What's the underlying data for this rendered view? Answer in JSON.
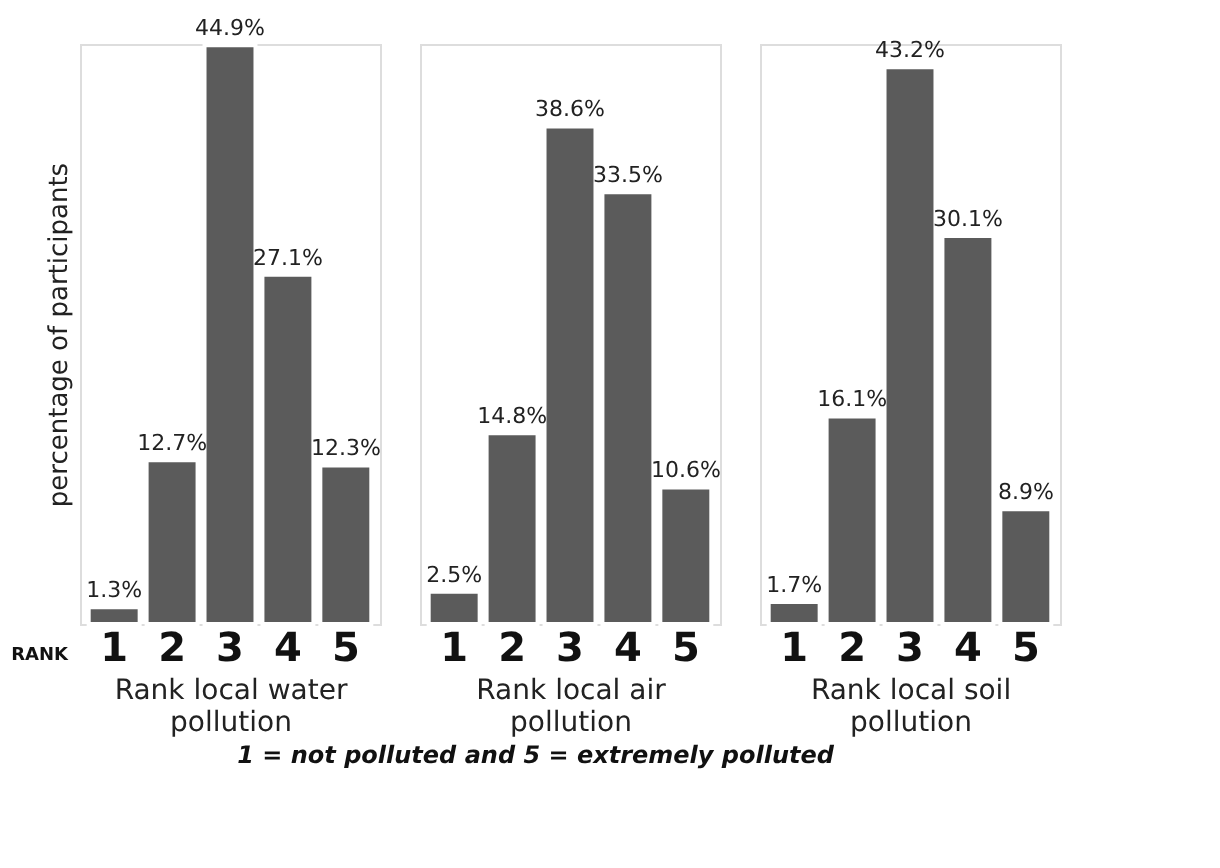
{
  "chart_data": [
    {
      "type": "bar",
      "ylabel": "percentage of participants",
      "xlabel": "Rank local water pollution",
      "categories": [
        "1",
        "2",
        "3",
        "4",
        "5"
      ],
      "values": [
        1.3,
        12.7,
        44.9,
        27.1,
        12.3
      ],
      "value_labels": [
        "1.3%",
        "12.7%",
        "44.9%",
        "27.1%",
        "12.3%"
      ],
      "color": "#5b5b5b",
      "annotations": [
        "RANK"
      ]
    },
    {
      "type": "bar",
      "xlabel": "Rank local air pollution",
      "categories": [
        "1",
        "2",
        "3",
        "4",
        "5"
      ],
      "values": [
        2.5,
        14.8,
        38.6,
        33.5,
        10.6
      ],
      "value_labels": [
        "2.5%",
        "14.8%",
        "38.6%",
        "33.5%",
        "10.6%"
      ],
      "color": "#5b5b5b",
      "annotations": [
        "1 = not polluted and 5 = extremely polluted"
      ]
    },
    {
      "type": "bar",
      "xlabel": "Rank local soil pollution",
      "categories": [
        "1",
        "2",
        "3",
        "4",
        "5"
      ],
      "values": [
        1.7,
        16.1,
        43.2,
        30.1,
        8.9
      ],
      "value_labels": [
        "1.7%",
        "16.1%",
        "43.2%",
        "30.1%",
        "8.9%"
      ],
      "color": "#5b5b5b"
    }
  ]
}
